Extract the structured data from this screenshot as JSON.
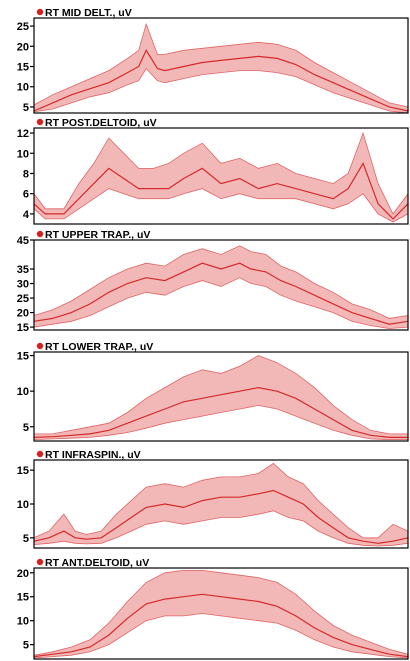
{
  "colors": {
    "band_fill": "#f2b8b8",
    "band_edge": "#e06464",
    "mean_line": "#d42a2a",
    "title_dot": "#d92020",
    "axis": "#000000"
  },
  "chart_data": [
    {
      "type": "area",
      "title": "RT MID DELT., uV",
      "yticks": [
        5,
        10,
        15,
        20,
        25
      ],
      "ylim": [
        3.5,
        27
      ],
      "x": [
        0,
        5,
        10,
        15,
        20,
        25,
        28,
        30,
        33,
        35,
        40,
        45,
        50,
        55,
        60,
        65,
        70,
        75,
        80,
        85,
        90,
        95,
        100
      ],
      "series": [
        {
          "name": "mean",
          "values": [
            4,
            6,
            8,
            9.5,
            11,
            13.5,
            15,
            19,
            14.5,
            14,
            15,
            16,
            16.5,
            17,
            17.5,
            17,
            15.5,
            13,
            11,
            9,
            7,
            5,
            4
          ]
        },
        {
          "name": "upper",
          "values": [
            5.5,
            8,
            10,
            12,
            14,
            17,
            19,
            25.5,
            18,
            18,
            19,
            19.5,
            20,
            20.5,
            21,
            20.5,
            19,
            16,
            13.5,
            11,
            8.5,
            6,
            5
          ]
        },
        {
          "name": "lower",
          "values": [
            3.8,
            4.5,
            6,
            7.5,
            8.5,
            10.5,
            11.5,
            14.5,
            11.5,
            11,
            12,
            13,
            13.5,
            14,
            14,
            13.5,
            12.5,
            10.5,
            8.5,
            7,
            5.5,
            4,
            3.5
          ]
        }
      ]
    },
    {
      "type": "area",
      "title": "RT POST.DELTOID, uV",
      "yticks": [
        4,
        6,
        8,
        10,
        12
      ],
      "ylim": [
        3,
        12.5
      ],
      "x": [
        0,
        3,
        8,
        12,
        16,
        20,
        24,
        28,
        32,
        36,
        40,
        45,
        50,
        55,
        60,
        65,
        70,
        75,
        80,
        84,
        88,
        92,
        96,
        100
      ],
      "series": [
        {
          "name": "mean",
          "values": [
            5,
            4,
            4,
            5.5,
            7,
            8.5,
            7.5,
            6.5,
            6.5,
            6.5,
            7.5,
            8.5,
            7,
            7.5,
            6.5,
            7,
            6.5,
            6,
            5.5,
            6.5,
            9,
            5,
            3.5,
            5
          ]
        },
        {
          "name": "upper",
          "values": [
            6,
            4.5,
            4.5,
            7,
            9,
            11.5,
            10,
            8.5,
            8.5,
            9,
            10,
            11,
            9,
            9.5,
            8.5,
            9,
            8,
            7.5,
            7,
            8,
            12,
            7,
            4,
            6
          ]
        },
        {
          "name": "lower",
          "values": [
            4.5,
            3.5,
            3.5,
            4.5,
            5.5,
            6.5,
            6,
            5.5,
            5.5,
            5.5,
            6,
            6.5,
            5.5,
            6,
            5.5,
            5.5,
            5.5,
            5,
            4.5,
            5,
            6,
            4,
            3.2,
            4
          ]
        }
      ]
    },
    {
      "type": "area",
      "title": "RT UPPER TRAP., uV",
      "yticks": [
        15,
        20,
        25,
        30,
        35,
        45
      ],
      "ylim": [
        14,
        45
      ],
      "x": [
        0,
        5,
        10,
        15,
        20,
        25,
        30,
        35,
        40,
        45,
        50,
        55,
        58,
        62,
        66,
        70,
        75,
        80,
        85,
        90,
        95,
        100
      ],
      "series": [
        {
          "name": "mean",
          "values": [
            17,
            18,
            20,
            23,
            27,
            30,
            32,
            31,
            34,
            37,
            35,
            37,
            35,
            34,
            31,
            29,
            26,
            23,
            20,
            18,
            16,
            17
          ]
        },
        {
          "name": "upper",
          "values": [
            19,
            21,
            24,
            28,
            32,
            35,
            37,
            36,
            40,
            42,
            40,
            43,
            41,
            40,
            36,
            34,
            30,
            27,
            23,
            21,
            18,
            19
          ]
        },
        {
          "name": "lower",
          "values": [
            15,
            16,
            17,
            19,
            22,
            25,
            27,
            26,
            29,
            31,
            29,
            32,
            30,
            29,
            26,
            24,
            22,
            20,
            17,
            15.5,
            14.5,
            15
          ]
        }
      ]
    },
    {
      "type": "area",
      "title": "RT LOWER TRAP., uV",
      "yticks": [
        5,
        10,
        15
      ],
      "ylim": [
        3,
        15.5
      ],
      "x": [
        0,
        5,
        10,
        15,
        20,
        25,
        30,
        35,
        40,
        45,
        50,
        55,
        60,
        65,
        70,
        75,
        80,
        85,
        90,
        95,
        100
      ],
      "series": [
        {
          "name": "mean",
          "values": [
            3.5,
            3.6,
            3.8,
            4,
            4.5,
            5.5,
            6.5,
            7.5,
            8.5,
            9,
            9.5,
            10,
            10.5,
            10,
            9,
            7.5,
            6,
            4.5,
            3.8,
            3.5,
            3.5
          ]
        },
        {
          "name": "upper",
          "values": [
            4,
            4,
            4.5,
            5,
            5.5,
            7,
            9,
            10.5,
            12,
            13,
            12.5,
            13.5,
            15,
            14,
            12.5,
            10.5,
            8,
            6,
            4.5,
            4,
            4
          ]
        },
        {
          "name": "lower",
          "values": [
            3.2,
            3.3,
            3.4,
            3.5,
            3.8,
            4.2,
            4.8,
            5.5,
            6,
            6.5,
            7,
            7.5,
            8,
            7.5,
            6.5,
            5.5,
            4.5,
            3.8,
            3.3,
            3.2,
            3.2
          ]
        }
      ]
    },
    {
      "type": "area",
      "title": "RT INFRASPIN., uV",
      "yticks": [
        5,
        10,
        15
      ],
      "ylim": [
        3.5,
        16.5
      ],
      "x": [
        0,
        4,
        8,
        11,
        14,
        18,
        22,
        26,
        30,
        35,
        40,
        45,
        50,
        55,
        60,
        64,
        68,
        72,
        76,
        80,
        84,
        88,
        92,
        96,
        100
      ],
      "series": [
        {
          "name": "mean",
          "values": [
            4.5,
            5,
            6,
            5,
            4.8,
            5,
            6.5,
            8,
            9.5,
            10,
            9.5,
            10.5,
            11,
            11,
            11.5,
            12,
            11,
            10,
            8,
            6.5,
            5,
            4.5,
            4.2,
            4.5,
            5
          ]
        },
        {
          "name": "upper",
          "values": [
            5,
            6,
            8.5,
            6,
            5.5,
            6,
            8.5,
            10.5,
            12.5,
            13,
            12.5,
            13.5,
            14,
            14,
            14.5,
            16,
            14,
            13,
            10.5,
            8.5,
            6.5,
            5,
            5,
            7,
            6
          ]
        },
        {
          "name": "lower",
          "values": [
            4,
            4.2,
            4.5,
            4.2,
            4.1,
            4.2,
            5,
            6,
            7,
            7.5,
            7,
            7.5,
            8,
            8,
            8.5,
            9,
            8,
            7.5,
            6,
            5,
            4.2,
            3.9,
            3.8,
            3.9,
            4.2
          ]
        }
      ]
    },
    {
      "type": "area",
      "title": "RT ANT.DELTOID, uV",
      "yticks": [
        5,
        10,
        15,
        20
      ],
      "ylim": [
        2,
        21
      ],
      "x": [
        0,
        5,
        10,
        15,
        20,
        25,
        30,
        35,
        40,
        45,
        50,
        55,
        60,
        65,
        70,
        75,
        80,
        85,
        90,
        95,
        100
      ],
      "series": [
        {
          "name": "mean",
          "values": [
            2.5,
            3,
            3.5,
            4.5,
            7,
            10.5,
            13.5,
            14.5,
            15,
            15.5,
            15,
            14.5,
            14,
            13,
            11,
            8.5,
            6.5,
            5,
            4,
            3,
            2.5
          ]
        },
        {
          "name": "upper",
          "values": [
            2.8,
            3.5,
            4.5,
            6,
            9.5,
            14,
            18,
            20,
            20.5,
            20.5,
            20,
            19.5,
            19,
            18,
            15.5,
            12,
            9,
            7,
            5.5,
            4,
            3
          ]
        },
        {
          "name": "lower",
          "values": [
            2.2,
            2.5,
            2.8,
            3.5,
            5,
            7.5,
            10,
            11,
            11,
            11.5,
            11,
            10.5,
            10,
            9.5,
            8,
            6,
            4.5,
            3.5,
            3,
            2.5,
            2.2
          ]
        }
      ]
    }
  ]
}
